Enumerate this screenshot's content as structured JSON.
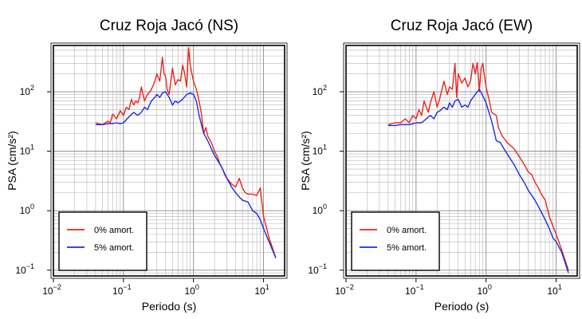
{
  "chart_data": [
    {
      "type": "line",
      "title": "Cruz Roja Jacó (NS)",
      "xlabel": "Periodo (s)",
      "ylabel": "PSA (cm/s²)",
      "xscale": "log",
      "yscale": "log",
      "xlim": [
        0.01,
        20
      ],
      "ylim": [
        0.08,
        600
      ],
      "xticks": [
        {
          "value": 0.01,
          "base": "10",
          "exp": "−2"
        },
        {
          "value": 0.1,
          "base": "10",
          "exp": "−1"
        },
        {
          "value": 1,
          "base": "10",
          "exp": "0"
        },
        {
          "value": 10,
          "base": "10",
          "exp": "1"
        }
      ],
      "yticks": [
        {
          "value": 0.1,
          "base": "10",
          "exp": "−1"
        },
        {
          "value": 1,
          "base": "10",
          "exp": "0"
        },
        {
          "value": 10,
          "base": "10",
          "exp": "1"
        },
        {
          "value": 100,
          "base": "10",
          "exp": "2"
        }
      ],
      "grid": true,
      "legend": "bottom-left",
      "series": [
        {
          "name": "0% amort.",
          "color": "#e8261e",
          "x": [
            0.04,
            0.05,
            0.06,
            0.065,
            0.07,
            0.08,
            0.09,
            0.1,
            0.11,
            0.12,
            0.13,
            0.14,
            0.15,
            0.16,
            0.17,
            0.18,
            0.2,
            0.22,
            0.24,
            0.26,
            0.28,
            0.3,
            0.33,
            0.36,
            0.38,
            0.4,
            0.42,
            0.45,
            0.5,
            0.55,
            0.6,
            0.65,
            0.7,
            0.75,
            0.8,
            0.85,
            0.9,
            0.95,
            1.0,
            1.1,
            1.2,
            1.3,
            1.4,
            1.5,
            1.6,
            1.8,
            2.0,
            2.2,
            2.4,
            2.6,
            2.8,
            3.0,
            3.5,
            4.0,
            4.5,
            5.0,
            5.5,
            6.0,
            7.0,
            8.0,
            9.0,
            10.0,
            12.0,
            15.0
          ],
          "values": [
            30,
            28,
            32,
            30,
            42,
            35,
            48,
            40,
            55,
            50,
            75,
            60,
            70,
            65,
            80,
            120,
            70,
            90,
            100,
            120,
            150,
            200,
            150,
            380,
            200,
            180,
            110,
            90,
            250,
            130,
            160,
            150,
            280,
            200,
            120,
            550,
            280,
            200,
            150,
            110,
            70,
            42,
            20,
            25,
            18,
            14,
            10,
            8,
            6,
            5,
            4,
            3.5,
            2.8,
            2.5,
            3.5,
            2.4,
            2.0,
            1.9,
            1.9,
            1.8,
            2.4,
            0.8,
            0.35,
            0.16
          ]
        },
        {
          "name": "5% amort.",
          "color": "#1b2bde",
          "x": [
            0.04,
            0.05,
            0.06,
            0.07,
            0.08,
            0.09,
            0.1,
            0.12,
            0.14,
            0.16,
            0.18,
            0.2,
            0.22,
            0.25,
            0.28,
            0.3,
            0.33,
            0.36,
            0.4,
            0.45,
            0.5,
            0.55,
            0.6,
            0.7,
            0.8,
            0.9,
            1.0,
            1.1,
            1.2,
            1.4,
            1.6,
            1.8,
            2.0,
            2.5,
            3.0,
            3.5,
            4.0,
            4.5,
            5.0,
            6.0,
            7.0,
            8.0,
            9.0,
            10.0,
            12.0,
            15.0
          ],
          "values": [
            28,
            28,
            29,
            29,
            30,
            29,
            30,
            38,
            45,
            40,
            45,
            55,
            50,
            70,
            80,
            90,
            80,
            95,
            100,
            80,
            60,
            70,
            65,
            75,
            90,
            95,
            90,
            70,
            40,
            20,
            15,
            11,
            8.5,
            5.5,
            3.5,
            2.5,
            2.0,
            1.7,
            1.5,
            1.4,
            1.0,
            0.9,
            0.7,
            0.5,
            0.3,
            0.16
          ]
        }
      ]
    },
    {
      "type": "line",
      "title": "Cruz Roja Jacó (EW)",
      "xlabel": "Periodo (s)",
      "ylabel": "PSA (cm/s²)",
      "xscale": "log",
      "yscale": "log",
      "xlim": [
        0.01,
        20
      ],
      "ylim": [
        0.08,
        600
      ],
      "xticks": [
        {
          "value": 0.01,
          "base": "10",
          "exp": "−2"
        },
        {
          "value": 0.1,
          "base": "10",
          "exp": "−1"
        },
        {
          "value": 1,
          "base": "10",
          "exp": "0"
        },
        {
          "value": 10,
          "base": "10",
          "exp": "1"
        }
      ],
      "yticks": [
        {
          "value": 0.1,
          "base": "10",
          "exp": "−1"
        },
        {
          "value": 1,
          "base": "10",
          "exp": "0"
        },
        {
          "value": 10,
          "base": "10",
          "exp": "1"
        },
        {
          "value": 100,
          "base": "10",
          "exp": "2"
        }
      ],
      "grid": true,
      "legend": "bottom-left",
      "series": [
        {
          "name": "0% amort.",
          "color": "#e8261e",
          "x": [
            0.04,
            0.05,
            0.06,
            0.07,
            0.08,
            0.09,
            0.1,
            0.11,
            0.12,
            0.13,
            0.14,
            0.15,
            0.16,
            0.18,
            0.2,
            0.22,
            0.25,
            0.28,
            0.3,
            0.33,
            0.36,
            0.38,
            0.4,
            0.45,
            0.5,
            0.55,
            0.6,
            0.65,
            0.7,
            0.75,
            0.8,
            0.85,
            0.9,
            0.95,
            1.0,
            1.1,
            1.2,
            1.4,
            1.5,
            1.7,
            2.0,
            2.5,
            3.0,
            3.5,
            4.0,
            4.5,
            5.0,
            5.5,
            6.0,
            7.0,
            8.0,
            9.0,
            10.0,
            12.0,
            15.0
          ],
          "values": [
            28,
            30,
            30,
            35,
            30,
            40,
            35,
            50,
            40,
            70,
            55,
            45,
            65,
            100,
            55,
            80,
            150,
            90,
            120,
            110,
            300,
            80,
            200,
            140,
            170,
            120,
            150,
            300,
            200,
            310,
            100,
            250,
            300,
            180,
            120,
            75,
            45,
            40,
            25,
            18,
            14,
            11,
            8,
            6,
            4.5,
            4,
            3,
            2.5,
            2.0,
            1.5,
            0.8,
            0.55,
            0.4,
            0.22,
            0.1
          ]
        },
        {
          "name": "5% amort.",
          "color": "#1b2bde",
          "x": [
            0.04,
            0.05,
            0.06,
            0.07,
            0.08,
            0.09,
            0.1,
            0.12,
            0.14,
            0.16,
            0.18,
            0.2,
            0.22,
            0.25,
            0.28,
            0.3,
            0.33,
            0.36,
            0.4,
            0.45,
            0.5,
            0.55,
            0.6,
            0.7,
            0.8,
            0.9,
            1.0,
            1.1,
            1.2,
            1.4,
            1.6,
            1.8,
            2.0,
            2.5,
            3.0,
            3.5,
            4.0,
            4.5,
            5.0,
            6.0,
            7.0,
            8.0,
            9.0,
            10.0,
            12.0,
            15.0
          ],
          "values": [
            27,
            27,
            28,
            28,
            28,
            29,
            30,
            30,
            35,
            40,
            35,
            45,
            48,
            55,
            50,
            65,
            55,
            70,
            75,
            55,
            60,
            55,
            70,
            90,
            110,
            85,
            65,
            45,
            32,
            15,
            14,
            11,
            9,
            6,
            4,
            3,
            2.2,
            1.8,
            1.5,
            1.0,
            0.7,
            0.5,
            0.35,
            0.3,
            0.2,
            0.09
          ]
        }
      ]
    }
  ]
}
